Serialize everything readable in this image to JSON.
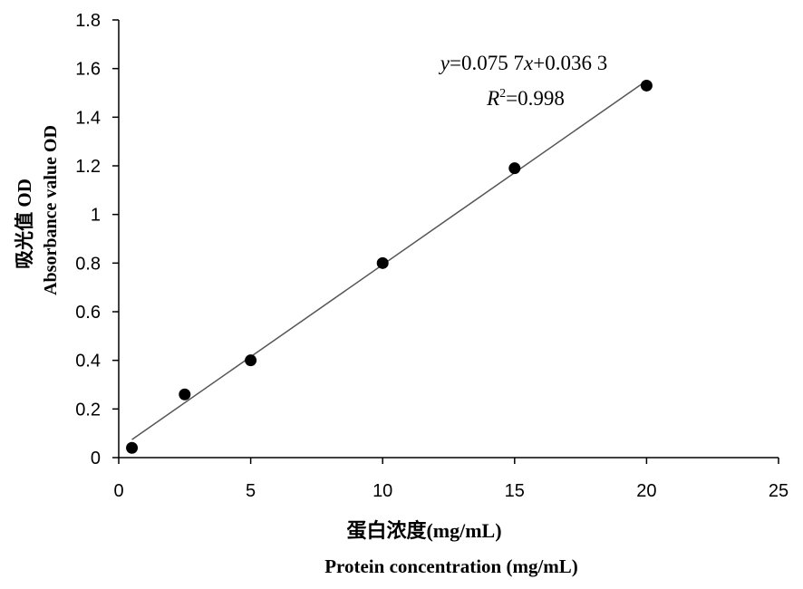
{
  "chart_data": {
    "type": "scatter",
    "xlabel_cn": "蛋白浓度(mg/mL)",
    "xlabel_en": "Protein concentration (mg/mL)",
    "ylabel_cn": "吸光值 OD",
    "ylabel_en": "Absorbance value OD",
    "xlim": [
      0,
      25
    ],
    "ylim": [
      0,
      1.8
    ],
    "x_ticks": [
      "0",
      "5",
      "10",
      "15",
      "20",
      "25"
    ],
    "y_ticks": [
      "0",
      "0.2",
      "0.4",
      "0.6",
      "0.8",
      "1",
      "1.2",
      "1.4",
      "1.6",
      "1.8"
    ],
    "grid": false,
    "series": [
      {
        "x": [
          0.5,
          2.5,
          5,
          10,
          15,
          20
        ],
        "y": [
          0.04,
          0.26,
          0.4,
          0.8,
          1.19,
          1.53
        ]
      }
    ],
    "trendline": {
      "slope": 0.0757,
      "intercept": 0.0363,
      "x_range": [
        0.5,
        20
      ]
    },
    "annotations": {
      "equation": "y=0.075 7x+0.036 3",
      "r_squared": "R2=0.998"
    },
    "colors": {
      "marker": "#000000",
      "trendline": "#555555",
      "axis": "#000000"
    }
  }
}
